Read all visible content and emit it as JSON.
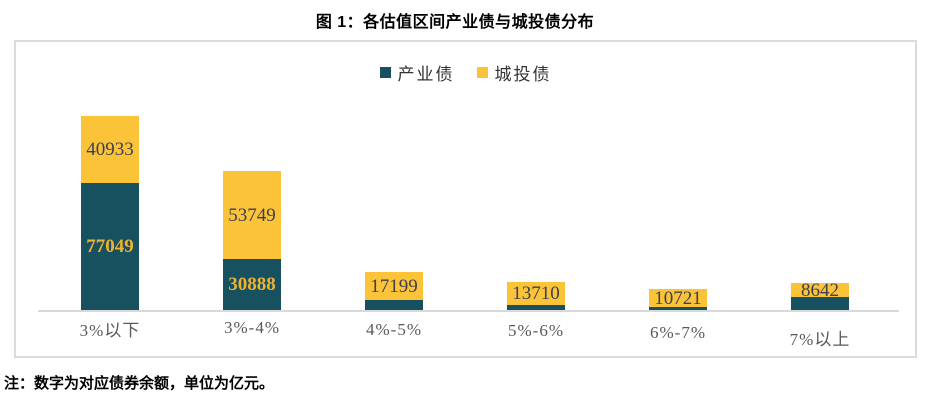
{
  "page": {
    "title": "图 1：各估值区间产业债与城投债分布",
    "note": "注：数字为对应债券余额，单位为亿元。"
  },
  "colors": {
    "industrial_bar": "#17505E",
    "chengtou_bar": "#FBC337",
    "label_on_dark": "#F0B231",
    "label_on_yellow": "#3F4050",
    "axis_line": "#D9D9D9",
    "category_text": "#595959",
    "panel_border": "#DBDBDB"
  },
  "legend": {
    "items": [
      {
        "label": "产业债",
        "color": "#17505E"
      },
      {
        "label": "城投债",
        "color": "#FBC337"
      }
    ]
  },
  "chart_data": {
    "type": "bar",
    "stacked": true,
    "title": "图 1：各估值区间产业债与城投债分布",
    "unit": "亿元",
    "xlabel": "",
    "ylabel": "",
    "grid": false,
    "legend_position": "top-center",
    "ylim": [
      0,
      125000
    ],
    "categories": [
      "3%以下",
      "3%-4%",
      "4%-5%",
      "5%-6%",
      "6%-7%",
      "7%以上"
    ],
    "series": [
      {
        "name": "产业债",
        "color": "#17505E",
        "values": [
          77049,
          30888,
          6100,
          3000,
          1800,
          7900
        ],
        "data_labels": [
          "77049",
          "30888",
          "",
          "",
          "",
          ""
        ],
        "estimated_indices": [
          2,
          3,
          4,
          5
        ],
        "label_color": "#F0B231",
        "label_bold": true
      },
      {
        "name": "城投债",
        "color": "#FBC337",
        "values": [
          40933,
          53749,
          17199,
          13710,
          10721,
          8642
        ],
        "data_labels": [
          "40933",
          "53749",
          "17199",
          "13710",
          "10721",
          "8642"
        ],
        "estimated_indices": [],
        "label_color": "#3F4050",
        "label_bold": false
      }
    ],
    "note": "注：数字为对应债券余额，单位为亿元。"
  }
}
